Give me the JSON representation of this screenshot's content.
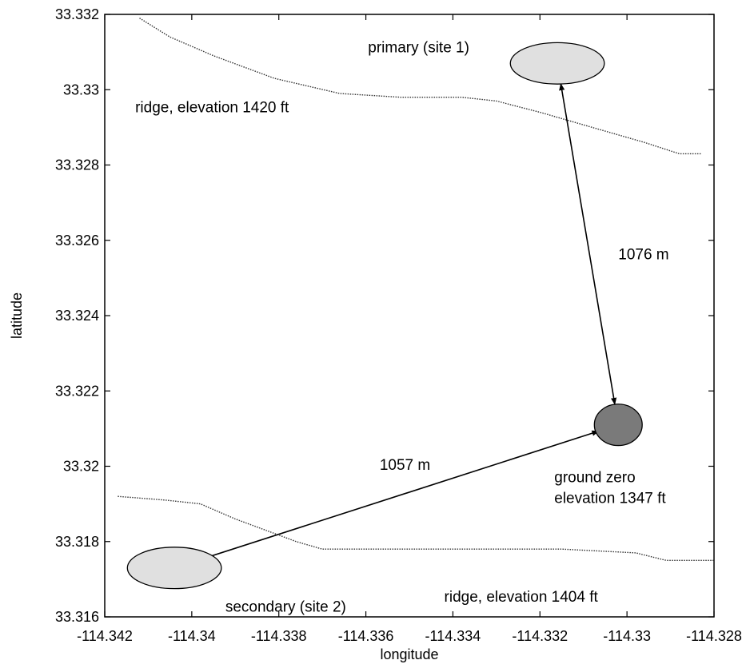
{
  "chart_data": {
    "type": "scatter",
    "xlabel": "longitude",
    "ylabel": "latitude",
    "xlim": [
      -114.342,
      -114.328
    ],
    "ylim": [
      33.316,
      33.332
    ],
    "xticks": [
      -114.342,
      -114.34,
      -114.338,
      -114.336,
      -114.334,
      -114.332,
      -114.33,
      -114.328
    ],
    "xtick_labels": [
      "-114.342",
      "-114.34",
      "-114.338",
      "-114.336",
      "-114.334",
      "-114.332",
      "-114.33",
      "-114.328"
    ],
    "yticks": [
      33.316,
      33.318,
      33.32,
      33.322,
      33.324,
      33.326,
      33.328,
      33.33,
      33.332
    ],
    "ytick_labels": [
      "33.316",
      "33.318",
      "33.32",
      "33.322",
      "33.324",
      "33.326",
      "33.328",
      "33.33",
      "33.332"
    ],
    "grid": false,
    "sites": [
      {
        "label": "primary (site 1)",
        "lon": -114.3316,
        "lat": 33.3307,
        "rx_lon": 0.00108,
        "ry_lat": 0.00055,
        "color": "#e0e0e0"
      },
      {
        "label": "secondary (site 2)",
        "lon": -114.3404,
        "lat": 33.3173,
        "rx_lon": 0.00108,
        "ry_lat": 0.00055,
        "color": "#e0e0e0"
      },
      {
        "label": "ground zero",
        "label2": "elevation 1347 ft",
        "lon": -114.3302,
        "lat": 33.3211,
        "rx_lon": 0.00055,
        "ry_lat": 0.00055,
        "color": "#7a7a7a"
      }
    ],
    "arrows": [
      {
        "label": "1076 m",
        "from": [
          -114.3316,
          33.3307
        ],
        "to": [
          -114.3302,
          33.3211
        ],
        "label_at": [
          -114.3302,
          33.3255
        ]
      },
      {
        "label": "1057 m",
        "from": [
          -114.3302,
          33.3211
        ],
        "to": [
          -114.3404,
          33.3173
        ],
        "label_at": [
          -114.3351,
          33.3199
        ]
      }
    ],
    "ridges": [
      {
        "label": "ridge, elevation 1420 ft",
        "label_at": [
          -114.3413,
          33.3294
        ],
        "points": [
          [
            -114.3412,
            33.3319
          ],
          [
            -114.3405,
            33.3314
          ],
          [
            -114.3395,
            33.3309
          ],
          [
            -114.3381,
            33.3303
          ],
          [
            -114.3366,
            33.3299
          ],
          [
            -114.3352,
            33.3298
          ],
          [
            -114.3338,
            33.3298
          ],
          [
            -114.333,
            33.3297
          ],
          [
            -114.332,
            33.3294
          ],
          [
            -114.3308,
            33.329
          ],
          [
            -114.3296,
            33.3286
          ],
          [
            -114.3288,
            33.3283
          ],
          [
            -114.3283,
            33.3283
          ]
        ]
      },
      {
        "label": "ridge, elevation 1404 ft",
        "label_at": [
          -114.3342,
          33.3164
        ],
        "points": [
          [
            -114.3417,
            33.3192
          ],
          [
            -114.3406,
            33.3191
          ],
          [
            -114.3398,
            33.319
          ],
          [
            -114.339,
            33.3186
          ],
          [
            -114.3383,
            33.3183
          ],
          [
            -114.3376,
            33.318
          ],
          [
            -114.337,
            33.3178
          ],
          [
            -114.3356,
            33.3178
          ],
          [
            -114.3335,
            33.3178
          ],
          [
            -114.3315,
            33.3178
          ],
          [
            -114.3298,
            33.3177
          ],
          [
            -114.3291,
            33.3175
          ],
          [
            -114.3283,
            33.3175
          ],
          [
            -114.328,
            33.3175
          ]
        ]
      }
    ]
  }
}
